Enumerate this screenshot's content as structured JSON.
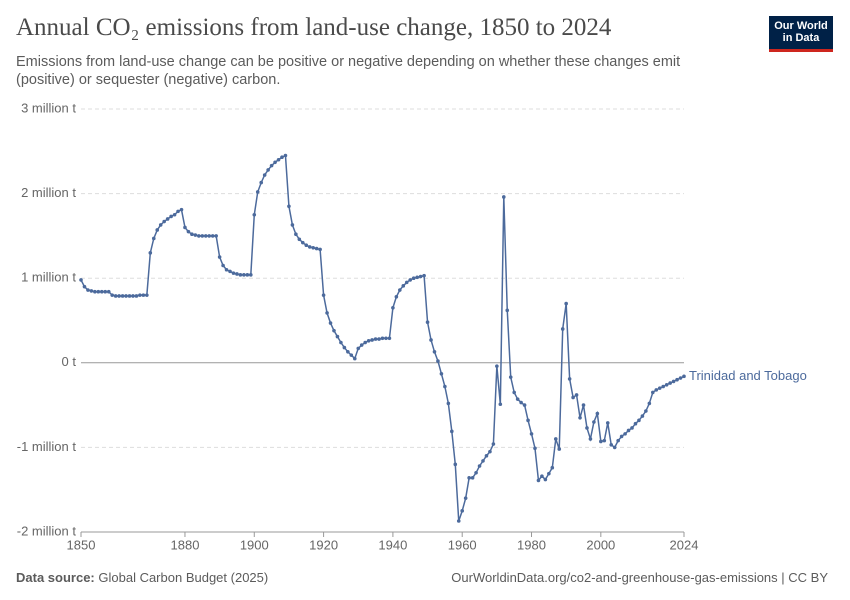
{
  "chart_data": {
    "type": "line",
    "title": "Annual CO₂ emissions from land-use change, 1850 to 2024",
    "subtitle": "Emissions from land-use change can be positive or negative depending on whether these changes emit (positive) or sequester (negative) carbon.",
    "logo": [
      "Our World",
      "in Data"
    ],
    "source_label": "Data source:",
    "source": "Global Carbon Budget (2025)",
    "footer_right": "OurWorldinData.org/co2-and-greenhouse-gas-emissions | CC BY",
    "x": [
      1850,
      1851,
      1852,
      1853,
      1854,
      1855,
      1856,
      1857,
      1858,
      1859,
      1860,
      1861,
      1862,
      1863,
      1864,
      1865,
      1866,
      1867,
      1868,
      1869,
      1870,
      1871,
      1872,
      1873,
      1874,
      1875,
      1876,
      1877,
      1878,
      1879,
      1880,
      1881,
      1882,
      1883,
      1884,
      1885,
      1886,
      1887,
      1888,
      1889,
      1890,
      1891,
      1892,
      1893,
      1894,
      1895,
      1896,
      1897,
      1898,
      1899,
      1900,
      1901,
      1902,
      1903,
      1904,
      1905,
      1906,
      1907,
      1908,
      1909,
      1910,
      1911,
      1912,
      1913,
      1914,
      1915,
      1916,
      1917,
      1918,
      1919,
      1920,
      1921,
      1922,
      1923,
      1924,
      1925,
      1926,
      1927,
      1928,
      1929,
      1930,
      1931,
      1932,
      1933,
      1934,
      1935,
      1936,
      1937,
      1938,
      1939,
      1940,
      1941,
      1942,
      1943,
      1944,
      1945,
      1946,
      1947,
      1948,
      1949,
      1950,
      1951,
      1952,
      1953,
      1954,
      1955,
      1956,
      1957,
      1958,
      1959,
      1960,
      1961,
      1962,
      1963,
      1964,
      1965,
      1966,
      1967,
      1968,
      1969,
      1970,
      1971,
      1972,
      1973,
      1974,
      1975,
      1976,
      1977,
      1978,
      1979,
      1980,
      1981,
      1982,
      1983,
      1984,
      1985,
      1986,
      1987,
      1988,
      1989,
      1990,
      1991,
      1992,
      1993,
      1994,
      1995,
      1996,
      1997,
      1998,
      1999,
      2000,
      2001,
      2002,
      2003,
      2004,
      2005,
      2006,
      2007,
      2008,
      2009,
      2010,
      2011,
      2012,
      2013,
      2014,
      2015,
      2016,
      2017,
      2018,
      2019,
      2020,
      2021,
      2022,
      2023,
      2024
    ],
    "series": [
      {
        "name": "Trinidad and Tobago",
        "color": "#4c6a9c",
        "values": [
          980000,
          900000,
          860000,
          850000,
          840000,
          840000,
          840000,
          840000,
          840000,
          800000,
          790000,
          790000,
          790000,
          790000,
          790000,
          790000,
          790000,
          800000,
          800000,
          800000,
          1300000,
          1470000,
          1570000,
          1630000,
          1670000,
          1700000,
          1730000,
          1750000,
          1790000,
          1810000,
          1600000,
          1550000,
          1520000,
          1510000,
          1500000,
          1500000,
          1500000,
          1500000,
          1500000,
          1500000,
          1250000,
          1150000,
          1100000,
          1080000,
          1060000,
          1050000,
          1040000,
          1040000,
          1040000,
          1040000,
          1750000,
          2020000,
          2130000,
          2220000,
          2280000,
          2330000,
          2370000,
          2400000,
          2430000,
          2450000,
          1850000,
          1630000,
          1520000,
          1460000,
          1420000,
          1390000,
          1370000,
          1360000,
          1350000,
          1340000,
          800000,
          590000,
          470000,
          380000,
          310000,
          240000,
          180000,
          130000,
          90000,
          50000,
          170000,
          210000,
          240000,
          260000,
          270000,
          280000,
          280000,
          290000,
          290000,
          290000,
          650000,
          780000,
          860000,
          910000,
          950000,
          980000,
          1000000,
          1010000,
          1020000,
          1030000,
          480000,
          270000,
          130000,
          20000,
          -130000,
          -280000,
          -480000,
          -810000,
          -1200000,
          -1870000,
          -1750000,
          -1600000,
          -1360000,
          -1360000,
          -1300000,
          -1220000,
          -1160000,
          -1100000,
          -1050000,
          -960000,
          -40000,
          -490000,
          1960000,
          620000,
          -170000,
          -350000,
          -430000,
          -470000,
          -500000,
          -680000,
          -840000,
          -1010000,
          -1390000,
          -1340000,
          -1380000,
          -1310000,
          -1240000,
          -900000,
          -1020000,
          400000,
          700000,
          -190000,
          -410000,
          -380000,
          -650000,
          -500000,
          -770000,
          -900000,
          -700000,
          -600000,
          -930000,
          -920000,
          -710000,
          -970000,
          -1000000,
          -920000,
          -870000,
          -840000,
          -800000,
          -770000,
          -720000,
          -680000,
          -630000,
          -570000,
          -480000,
          -350000,
          -320000,
          -300000,
          -280000,
          -260000,
          -240000,
          -220000,
          -200000,
          -180000,
          -160000
        ]
      }
    ],
    "xlim": [
      1850,
      2024
    ],
    "xticks": [
      1850,
      1880,
      1900,
      1920,
      1940,
      1960,
      1980,
      2000,
      2024
    ],
    "ylim": [
      -2000000,
      3000000
    ],
    "yticks": [
      {
        "value": -2000000,
        "label": "-2 million t"
      },
      {
        "value": -1000000,
        "label": "-1 million t"
      },
      {
        "value": 0,
        "label": "0 t"
      },
      {
        "value": 1000000,
        "label": "1 million t"
      },
      {
        "value": 2000000,
        "label": "2 million t"
      },
      {
        "value": 3000000,
        "label": "3 million t"
      }
    ],
    "grid": true
  }
}
